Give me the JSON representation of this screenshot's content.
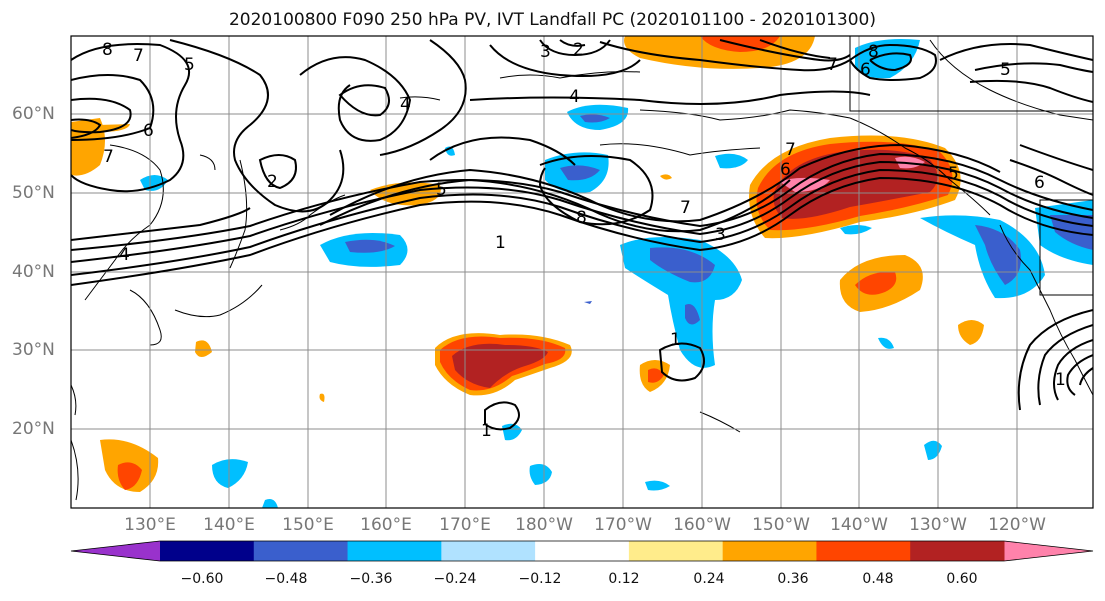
{
  "title": "2020100800 F090 250 hPa PV, IVT Landfall PC (2020101100 - 2020101300)",
  "map": {
    "region": "North Pacific",
    "lat_labels": [
      "60°N",
      "50°N",
      "40°N",
      "30°N",
      "20°N"
    ],
    "lon_labels": [
      "130°E",
      "140°E",
      "150°E",
      "160°E",
      "170°E",
      "180°W",
      "170°W",
      "160°W",
      "150°W",
      "140°W",
      "130°W",
      "120°W"
    ],
    "contour_labels": [
      "8",
      "7",
      "5",
      "6",
      "7",
      "4",
      "3",
      "2",
      "4",
      "5",
      "8",
      "7",
      "6",
      "5",
      "7",
      "6",
      "5",
      "1",
      "8",
      "7",
      "3",
      "2",
      "1",
      "1",
      "4",
      "6",
      "1"
    ]
  },
  "colorbar": {
    "ticks": [
      "−0.60",
      "−0.48",
      "−0.36",
      "−0.24",
      "−0.12",
      "0.12",
      "0.24",
      "0.36",
      "0.48",
      "0.60"
    ],
    "colors": [
      "#9932cc",
      "#00008b",
      "#3a5fcd",
      "#00bfff",
      "#b0e2ff",
      "#ffffff",
      "#ffec8b",
      "#ffa500",
      "#ff4500",
      "#b22222",
      "#ff82ab"
    ]
  },
  "colors": {
    "grid": "#8c8c8c",
    "contour": "#000000",
    "axis_label": "#777777"
  }
}
